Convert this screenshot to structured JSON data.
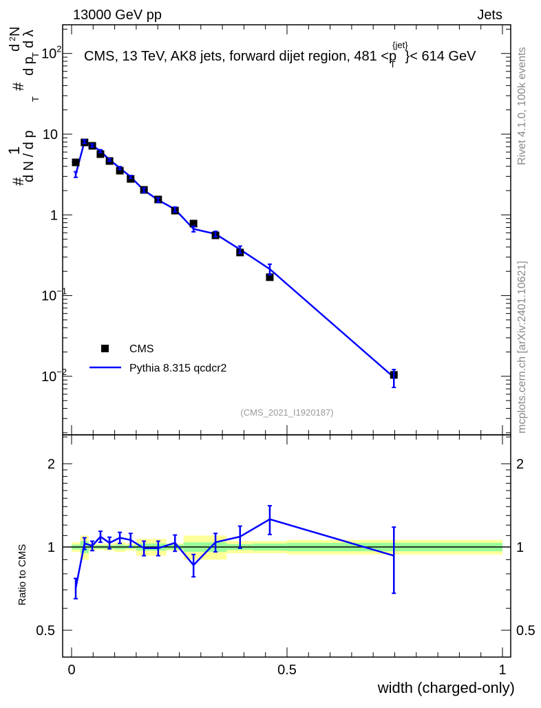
{
  "header": {
    "left": "13000 GeV pp",
    "right": "Jets"
  },
  "side": {
    "rivet": "Rivet 4.1.0,  100k events",
    "mcplots": "mcplots.cern.ch [arXiv:2401.10621]"
  },
  "colors": {
    "data": "#000000",
    "mc": "#0000ff",
    "band_total": "#ffff99",
    "band_stat": "#99ff99"
  },
  "chart_data": [
    {
      "type": "scatter",
      "title": "CMS, 13 TeV, AK8 jets, forward dijet region, 481 <p_T^{jet}< 614 GeV",
      "title_main": "CMS, 13 TeV, AK8 jets, forward dijet region, 481 <p",
      "title_sup": "{jet}",
      "title_sub": "T",
      "title_end": "}< 614 GeV",
      "ylabel": "1/N dN/dp_T d²N/dp_T dλ",
      "ylabel_parts": [
        "#",
        "1",
        "d N / d p",
        "T",
        "#",
        "d p",
        "T",
        "d",
        "2",
        "N",
        "d λ"
      ],
      "yscale": "log",
      "ylim": [
        0.0019,
        226
      ],
      "xlim": [
        -0.01,
        1.01
      ],
      "yticks": [
        {
          "v": 100,
          "base": "10",
          "exp": "2"
        },
        {
          "v": 10,
          "label": "10"
        },
        {
          "v": 1,
          "label": "1"
        },
        {
          "v": 0.1,
          "base": "10",
          "exp": "−1"
        },
        {
          "v": 0.01,
          "base": "10",
          "exp": "−2"
        }
      ],
      "annotation": "(CMS_2021_I1920187)",
      "legend": {
        "placement": "bottom-left",
        "entries": [
          "CMS",
          "Pythia 8.315 qcdcr2"
        ]
      },
      "x": [
        0.0096,
        0.03,
        0.048,
        0.067,
        0.088,
        0.112,
        0.137,
        0.168,
        0.201,
        0.24,
        0.283,
        0.334,
        0.391,
        0.46,
        0.748
      ],
      "series": [
        {
          "name": "CMS",
          "values": [
            4.47,
            7.9,
            7.17,
            5.66,
            4.65,
            3.53,
            2.79,
            2.04,
            1.55,
            1.13,
            0.78,
            0.558,
            0.342,
            0.169,
            0.0104
          ]
        },
        {
          "name": "Pythia 8.315 qcdcr2",
          "values": [
            3.17,
            8.1,
            7.25,
            6.17,
            4.81,
            3.81,
            2.96,
            2.02,
            1.53,
            1.17,
            0.67,
            0.58,
            0.373,
            0.213,
            0.0097
          ],
          "rel_err": [
            0.08,
            0.05,
            0.04,
            0.04,
            0.04,
            0.04,
            0.04,
            0.06,
            0.06,
            0.07,
            0.08,
            0.08,
            0.1,
            0.15,
            0.25
          ]
        }
      ]
    },
    {
      "type": "line",
      "ylabel": "Ratio to CMS",
      "xlabel": "width (charged-only)",
      "yscale": "log2",
      "ylim": [
        0.4,
        2.54
      ],
      "yticks": [
        {
          "v": 2,
          "label": "2"
        },
        {
          "v": 1,
          "label": "1"
        },
        {
          "v": 0.5,
          "label": "0.5"
        }
      ],
      "xticks": [
        {
          "v": 0,
          "label": "0"
        },
        {
          "v": 0.5,
          "label": "0.5"
        },
        {
          "v": 1,
          "label": "1"
        }
      ],
      "ratio": [
        0.71,
        1.03,
        1.01,
        1.09,
        1.035,
        1.08,
        1.06,
        0.99,
        0.99,
        1.035,
        0.86,
        1.04,
        1.09,
        1.26,
        0.93
      ],
      "ratio_err": [
        0.06,
        0.05,
        0.04,
        0.05,
        0.05,
        0.05,
        0.06,
        0.06,
        0.06,
        0.07,
        0.08,
        0.08,
        0.1,
        0.15,
        0.25
      ],
      "bin_edges": [
        0,
        0.02,
        0.04,
        0.055,
        0.075,
        0.1,
        0.125,
        0.15,
        0.185,
        0.22,
        0.26,
        0.305,
        0.36,
        0.42,
        0.5,
        1.0
      ],
      "band_total": [
        0.04,
        0.1,
        0.03,
        0.025,
        0.03,
        0.04,
        0.03,
        0.07,
        0.07,
        0.03,
        0.1,
        0.1,
        0.05,
        0.05,
        0.06
      ],
      "band_stat": [
        0.02,
        0.05,
        0.015,
        0.015,
        0.015,
        0.02,
        0.015,
        0.03,
        0.03,
        0.02,
        0.04,
        0.04,
        0.025,
        0.03,
        0.035
      ]
    }
  ]
}
